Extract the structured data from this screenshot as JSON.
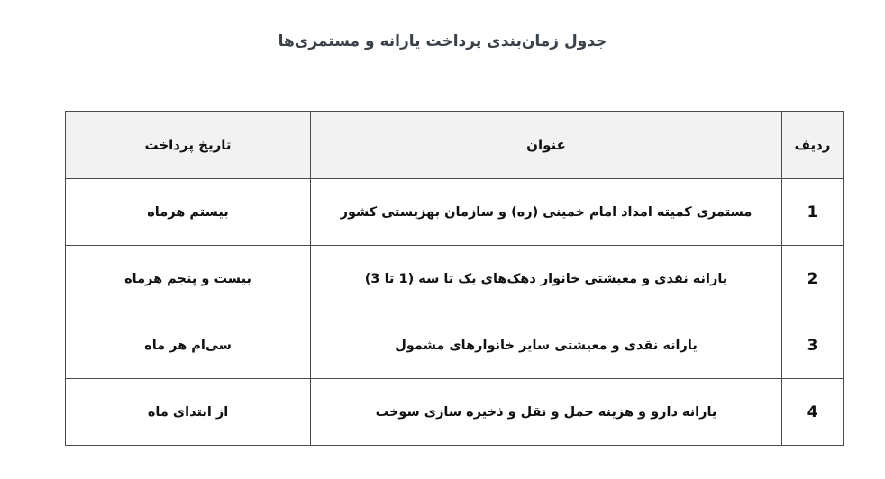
{
  "page": {
    "title": "جدول زمان‌بندی پرداخت یارانه و مستمری‌ها"
  },
  "table": {
    "headers": {
      "row": "ردیف",
      "title": "عنوان",
      "date": "تاریخ پرداخت"
    },
    "rows": [
      {
        "num": "1",
        "title": "مستمری کمیته امداد امام خمینی (ره) و سازمان بهزیستی کشور",
        "date": "بیستم هرماه"
      },
      {
        "num": "2",
        "title": "یارانه نقدی و معیشتی خانوار دهک‌های یک تا سه (1 تا 3)",
        "date": "بیست و پنجم هرماه"
      },
      {
        "num": "3",
        "title": "یارانه نقدی و معیشتی سایر خانوارهای مشمول",
        "date": "سی‌ام هر ماه"
      },
      {
        "num": "4",
        "title": "یارانه دارو و هزینه حمل و نقل و ذخیره سازی سوخت",
        "date": "از ابتدای ماه"
      }
    ],
    "colors": {
      "header_bg": "#f2f2f2",
      "border": "#4a4a4a",
      "title_text": "#3a4149",
      "cell_text": "#111111"
    }
  }
}
